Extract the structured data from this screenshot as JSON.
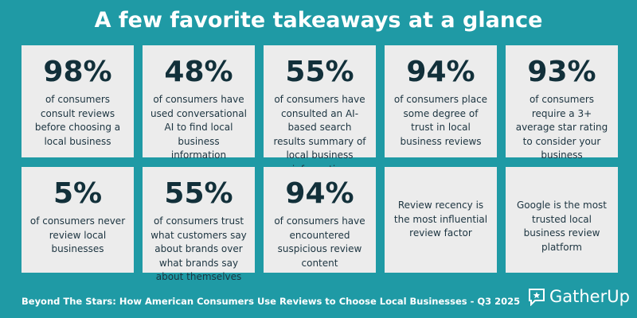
{
  "header": {
    "title": "A few favorite takeaways at a glance"
  },
  "cards": [
    {
      "stat": "98%",
      "text": "of consumers consult reviews before choosing a local business"
    },
    {
      "stat": "48%",
      "text": "of consumers have used conversational AI to find local business information"
    },
    {
      "stat": "55%",
      "text": "of consumers have consulted an AI-based search results summary of local business information"
    },
    {
      "stat": "94%",
      "text": "of consumers place some degree of trust in local business reviews"
    },
    {
      "stat": "93%",
      "text": "of consumers require a 3+ average star rating to consider your business"
    },
    {
      "stat": "5%",
      "text": "of consumers never review local businesses"
    },
    {
      "stat": "55%",
      "text": "of consumers trust what customers say about brands over what brands say about themselves"
    },
    {
      "stat": "94%",
      "text": "of consumers have encountered suspicious review content"
    },
    {
      "text": "Review recency is the most influential review factor"
    },
    {
      "text": "Google is the most trusted local business review platform"
    }
  ],
  "footer": {
    "text": "Beyond The Stars: How American Consumers Use Reviews to Choose Local Businesses - Q3 2025",
    "logo": "GatherUp"
  }
}
